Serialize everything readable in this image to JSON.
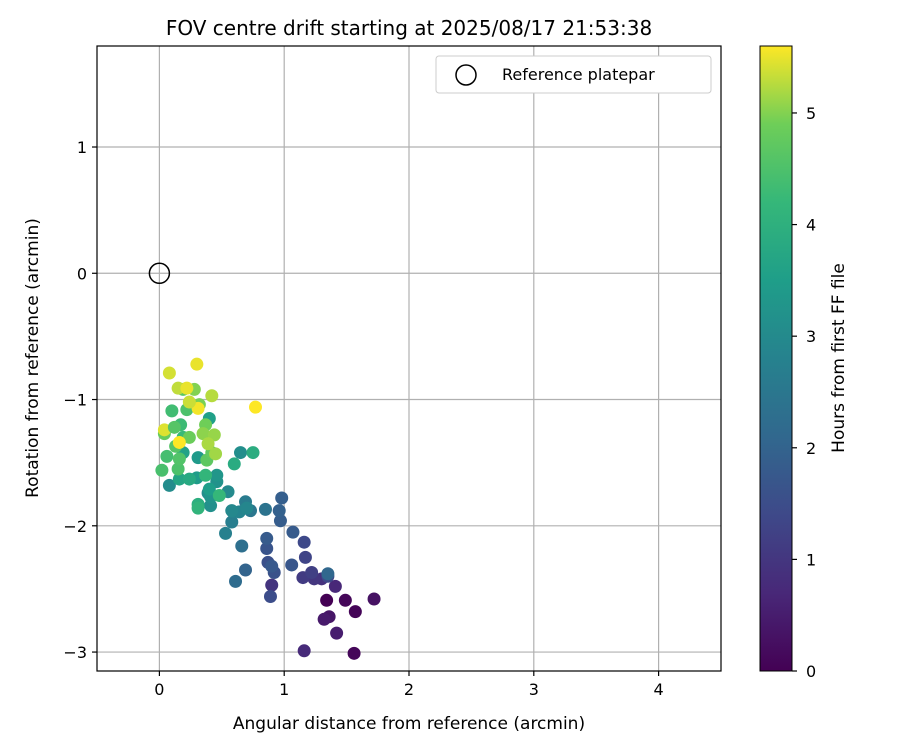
{
  "chart_data": {
    "type": "scatter",
    "title": "FOV centre drift starting at 2025/08/17 21:53:38",
    "xlabel": "Angular distance from reference (arcmin)",
    "ylabel": "Rotation from reference (arcmin)",
    "xlim": [
      -0.5,
      4.5
    ],
    "ylim": [
      -3.15,
      1.8
    ],
    "xticks": [
      "0",
      "1",
      "2",
      "3",
      "4"
    ],
    "yticks": [
      "1",
      "0",
      "−1",
      "−2",
      "−3"
    ],
    "grid": true,
    "legend": {
      "position": "top-right",
      "entry": "Reference platepar"
    },
    "reference_point": {
      "x": 0,
      "y": 0
    },
    "colorbar": {
      "label": "Hours from first FF file",
      "range": [
        0,
        5.6
      ],
      "ticks": [
        "0",
        "1",
        "2",
        "3",
        "4",
        "5"
      ],
      "colormap": "viridis"
    },
    "points": [
      [
        1.34,
        -2.59,
        0.0
      ],
      [
        1.49,
        -2.59,
        0.1
      ],
      [
        1.57,
        -2.68,
        0.05
      ],
      [
        1.56,
        -3.01,
        0.1
      ],
      [
        1.72,
        -2.58,
        0.3
      ],
      [
        1.36,
        -2.72,
        0.35
      ],
      [
        1.32,
        -2.74,
        0.45
      ],
      [
        1.42,
        -2.85,
        0.5
      ],
      [
        1.41,
        -2.48,
        0.7
      ],
      [
        1.16,
        -2.99,
        0.75
      ],
      [
        1.3,
        -2.42,
        0.9
      ],
      [
        1.24,
        -2.42,
        1.0
      ],
      [
        1.15,
        -2.41,
        1.1
      ],
      [
        0.9,
        -2.47,
        0.95
      ],
      [
        1.22,
        -2.37,
        1.2
      ],
      [
        1.35,
        -2.4,
        1.4
      ],
      [
        1.17,
        -2.25,
        1.3
      ],
      [
        1.16,
        -2.13,
        1.4
      ],
      [
        0.89,
        -2.56,
        1.5
      ],
      [
        0.87,
        -2.29,
        1.55
      ],
      [
        0.92,
        -2.37,
        1.6
      ],
      [
        0.86,
        -2.18,
        1.65
      ],
      [
        0.9,
        -2.32,
        1.75
      ],
      [
        0.86,
        -2.1,
        1.8
      ],
      [
        1.06,
        -2.31,
        1.7
      ],
      [
        1.07,
        -2.05,
        1.8
      ],
      [
        0.97,
        -1.96,
        1.85
      ],
      [
        0.98,
        -1.78,
        1.9
      ],
      [
        0.96,
        -1.88,
        1.95
      ],
      [
        1.35,
        -2.38,
        2.1
      ],
      [
        0.69,
        -2.35,
        2.0
      ],
      [
        0.61,
        -2.44,
        2.2
      ],
      [
        0.66,
        -2.16,
        2.3
      ],
      [
        0.85,
        -1.87,
        2.4
      ],
      [
        0.73,
        -1.88,
        2.5
      ],
      [
        0.69,
        -1.81,
        2.6
      ],
      [
        0.58,
        -1.97,
        2.7
      ],
      [
        0.53,
        -2.06,
        2.75
      ],
      [
        0.59,
        -1.89,
        2.8
      ],
      [
        0.64,
        -1.89,
        2.85
      ],
      [
        0.7,
        -1.86,
        2.9
      ],
      [
        0.58,
        -1.88,
        2.95
      ],
      [
        0.55,
        -1.73,
        3.0
      ],
      [
        0.65,
        -1.42,
        3.1
      ],
      [
        0.41,
        -1.84,
        3.15
      ],
      [
        0.39,
        -1.74,
        3.1
      ],
      [
        0.46,
        -1.65,
        3.2
      ],
      [
        0.46,
        -1.6,
        3.3
      ],
      [
        0.41,
        -1.77,
        3.25
      ],
      [
        0.08,
        -1.68,
        3.05
      ],
      [
        0.31,
        -1.46,
        3.4
      ],
      [
        0.3,
        -1.62,
        3.45
      ],
      [
        0.4,
        -1.71,
        3.5
      ],
      [
        0.4,
        -1.15,
        3.55
      ],
      [
        0.19,
        -1.42,
        3.6
      ],
      [
        0.16,
        -1.63,
        3.7
      ],
      [
        0.24,
        -1.63,
        3.8
      ],
      [
        0.6,
        -1.51,
        3.85
      ],
      [
        0.75,
        -1.42,
        3.9
      ],
      [
        0.31,
        -1.83,
        3.95
      ],
      [
        0.31,
        -1.86,
        4.1
      ],
      [
        0.48,
        -1.76,
        4.2
      ],
      [
        0.37,
        -1.6,
        4.15
      ],
      [
        0.19,
        -1.3,
        4.25
      ],
      [
        0.17,
        -1.2,
        4.3
      ],
      [
        0.1,
        -1.09,
        4.35
      ],
      [
        0.06,
        -1.45,
        4.4
      ],
      [
        0.02,
        -1.56,
        4.45
      ],
      [
        0.15,
        -1.55,
        4.5
      ],
      [
        0.16,
        -1.47,
        4.55
      ],
      [
        0.13,
        -1.37,
        4.6
      ],
      [
        0.22,
        -1.08,
        4.5
      ],
      [
        0.19,
        -0.92,
        4.65
      ],
      [
        0.38,
        -1.48,
        4.7
      ],
      [
        0.42,
        -1.42,
        4.75
      ],
      [
        0.04,
        -1.27,
        4.8
      ],
      [
        0.24,
        -1.3,
        4.85
      ],
      [
        0.37,
        -1.2,
        4.9
      ],
      [
        0.32,
        -1.04,
        4.95
      ],
      [
        0.28,
        -0.92,
        5.0
      ],
      [
        0.35,
        -1.27,
        5.05
      ],
      [
        0.44,
        -1.28,
        5.1
      ],
      [
        0.45,
        -1.43,
        5.15
      ],
      [
        0.39,
        -1.35,
        5.2
      ],
      [
        0.42,
        -0.97,
        5.25
      ],
      [
        0.15,
        -0.91,
        5.3
      ],
      [
        0.08,
        -0.79,
        5.4
      ],
      [
        0.04,
        -1.24,
        5.45
      ],
      [
        0.22,
        -0.91,
        5.5
      ],
      [
        0.3,
        -0.72,
        5.5
      ],
      [
        0.31,
        -1.07,
        5.55
      ],
      [
        0.16,
        -1.34,
        5.6
      ],
      [
        0.77,
        -1.06,
        5.6
      ],
      [
        0.24,
        -1.02,
        5.35
      ],
      [
        0.12,
        -1.22,
        4.6
      ]
    ]
  }
}
